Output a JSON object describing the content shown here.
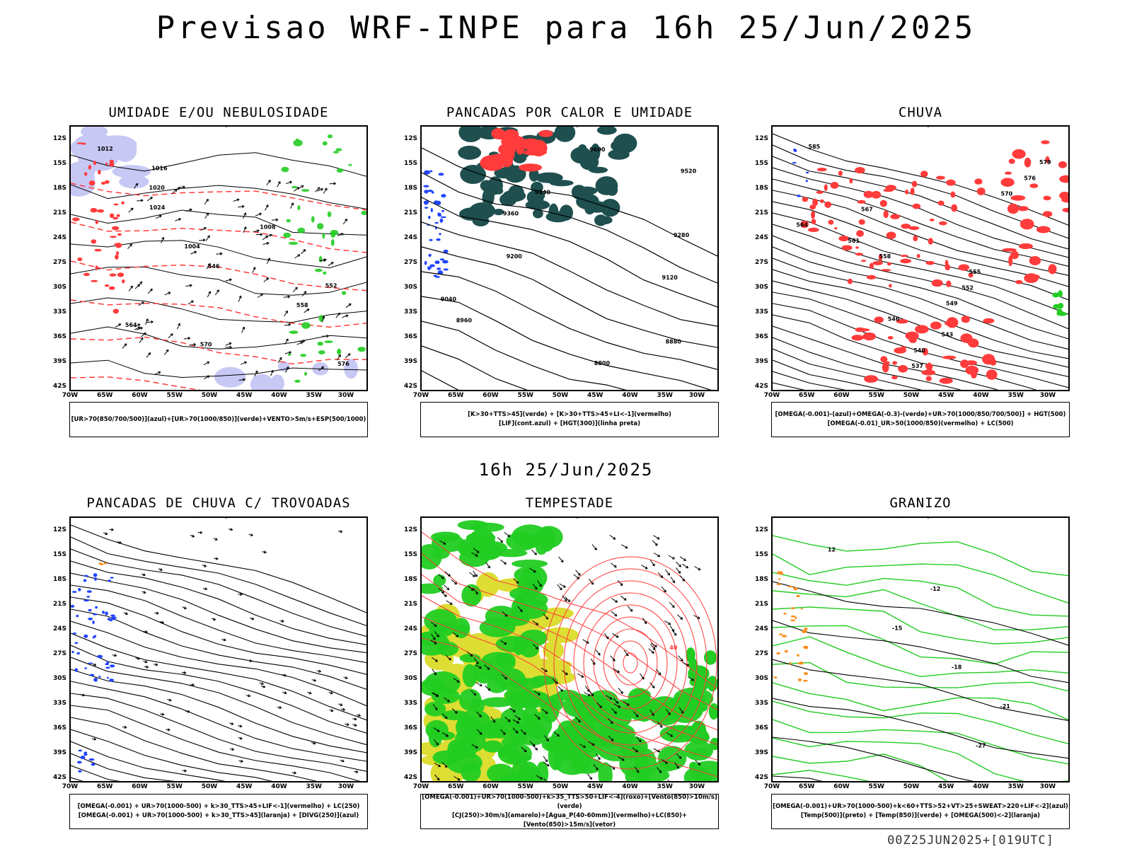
{
  "main_title": "Previsao WRF-INPE  para 16h 25/Jun/2025",
  "mid_time": "16h 25/Jun/2025",
  "footer": "00Z25JUN2025+[019UTC]",
  "lat_ticks": [
    "12S",
    "15S",
    "18S",
    "21S",
    "24S",
    "27S",
    "30S",
    "33S",
    "36S",
    "39S",
    "42S"
  ],
  "lon_ticks": [
    "70W",
    "65W",
    "60W",
    "55W",
    "50W",
    "45W",
    "40W",
    "35W",
    "30W"
  ],
  "colors": {
    "red": "#ff3b3b",
    "green": "#22cc22",
    "blue": "#2244ff",
    "lavender": "#c8c8f5",
    "teal": "#1f4f4f",
    "yellow": "#dddd33",
    "orange": "#ff8c1a",
    "black": "#000000"
  },
  "panels": [
    {
      "title": "UMIDADE E/OU NEBULOSIDADE",
      "legend": [
        "[UR>70(850/700/500)](azul)+[UR>70(1000/850)](verde)+VENTO>5m/s+ESP(500/1000)"
      ],
      "contour_labels": [
        "1012",
        "1016",
        "1020",
        "1024",
        "1008",
        "1004",
        "546",
        "552",
        "558",
        "564",
        "570",
        "576"
      ]
    },
    {
      "title": "PANCADAS POR CALOR E UMIDADE",
      "legend": [
        "[K>30+TTS>45](verde) + [K>30+TTS>45+LI<-1](vermelho)",
        "[LIF](cont.azul) + [HGT(300)](linha preta)"
      ],
      "contour_labels": [
        "9600",
        "9520",
        "9440",
        "9360",
        "9280",
        "9200",
        "9120",
        "9040",
        "8960",
        "8880",
        "8800"
      ]
    },
    {
      "title": "CHUVA",
      "legend": [
        "[OMEGA(-0.001)-(azul)+OMEGA(-0.3)-(verde)+UR>70(1000/850/700/500)] + HGT(500)",
        "[OMEGA(-0.01)_UR>50(1000/850)(vermelho) + LC(500)"
      ],
      "contour_labels": [
        "585",
        "579",
        "576",
        "570",
        "567",
        "564",
        "561",
        "558",
        "555",
        "552",
        "549",
        "546",
        "543",
        "540",
        "537"
      ]
    },
    {
      "title": "PANCADAS DE CHUVA C/ TROVOADAS",
      "legend": [
        "[OMEGA(-0.001) + UR>70(1000-500) + k>30_TTS>45+LIF<-1](vermelho) + LC(250)",
        "[OMEGA(-0.001) + UR>70(1000-500) + k>30_TTS>45](laranja) + [DIVG(250)](azul)"
      ],
      "contour_labels": []
    },
    {
      "title": "TEMPESTADE",
      "legend": [
        "[OMEGA(-0.001)+UR>70(1000-500)+k>35_TTS>50+LIF<-4](roxo)+[Vento(850)>10m/s](verde)",
        "[CJ(250)>30m/s](amarelo)+[Agua_P(40-60mm)](vermelho)+LC(850)+[Vento(850)>15m/s](vetor)"
      ],
      "contour_labels": [
        "40"
      ]
    },
    {
      "title": "GRANIZO",
      "legend": [
        "[OMEGA(-0.001)+UR>70(1000-500)+k<60+TTS>52+VT>25+SWEAT>220+LIF<-2](azul)",
        "[Temp(500)](preto) + [Temp(850)](verde) + [OMEGA(500)<-2](laranja)"
      ],
      "contour_labels": [
        "12",
        "-12",
        "-15",
        "-18",
        "-21",
        "-27"
      ]
    }
  ]
}
